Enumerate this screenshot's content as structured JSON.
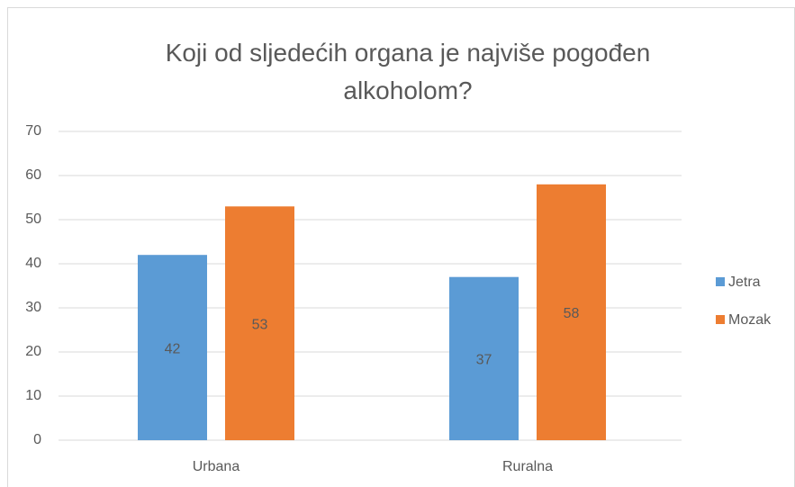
{
  "chart_data": {
    "type": "bar",
    "title": "Koji od sljedećih organa je najviše pogođen alkoholom?",
    "categories": [
      "Urbana",
      "Ruralna"
    ],
    "series": [
      {
        "name": "Jetra",
        "color": "#5b9bd5",
        "values": [
          42,
          37
        ]
      },
      {
        "name": "Mozak",
        "color": "#ed7d31",
        "values": [
          53,
          58
        ]
      }
    ],
    "ylim": [
      0,
      70
    ],
    "yticks": [
      0,
      10,
      20,
      30,
      40,
      50,
      60,
      70
    ],
    "grid": true,
    "legend": "right",
    "data_labels": true
  }
}
